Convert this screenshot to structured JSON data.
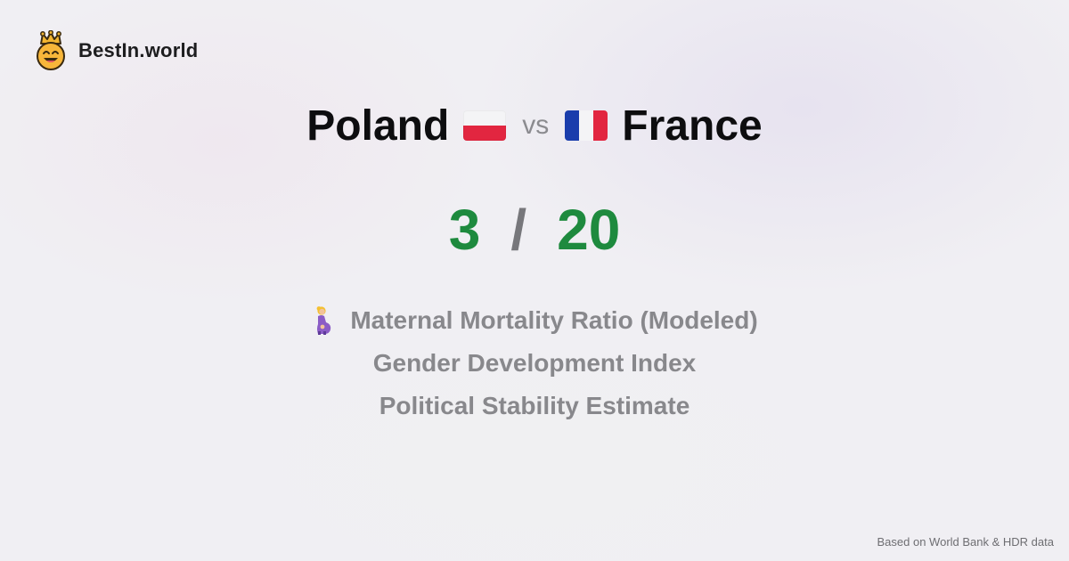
{
  "brand": {
    "name": "BestIn.world",
    "logo_icon": "crowned-smiley-icon"
  },
  "comparison": {
    "left_country": "Poland",
    "left_flag": "poland-flag-icon",
    "vs_label": "vs",
    "right_country": "France",
    "right_flag": "france-flag-icon"
  },
  "score": {
    "left": "3",
    "separator": "/",
    "right": "20",
    "color": "#1e8a3e"
  },
  "metrics": [
    {
      "label": "Maternal Mortality Ratio (Modeled)",
      "icon": "pregnant-woman-icon"
    },
    {
      "label": "Gender Development Index"
    },
    {
      "label": "Political Stability Estimate"
    }
  ],
  "footer": {
    "text": "Based on World Bank & HDR data"
  }
}
